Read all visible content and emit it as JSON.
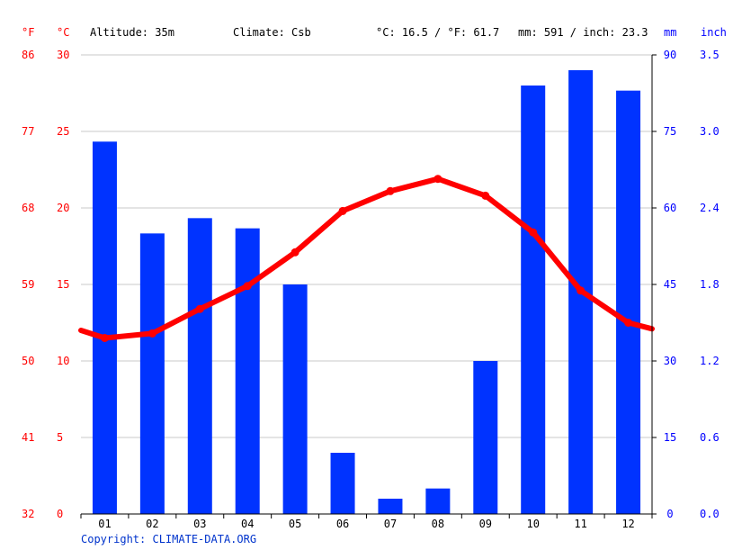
{
  "header": {
    "unit_f": "°F",
    "unit_c": "°C",
    "altitude": "Altitude: 35m",
    "climate": "Climate: Csb",
    "temp_avg": "°C: 16.5 / °F: 61.7",
    "precip_total": "mm: 591 / inch: 23.3",
    "unit_mm": "mm",
    "unit_inch": "inch"
  },
  "copyright": "Copyright: CLIMATE-DATA.ORG",
  "colors": {
    "temperature": "#ff0000",
    "precipitation": "#0033ff",
    "grid": "#c8c8c8"
  },
  "chart_data": {
    "type": "bar",
    "categories": [
      "01",
      "02",
      "03",
      "04",
      "05",
      "06",
      "07",
      "08",
      "09",
      "10",
      "11",
      "12"
    ],
    "series": [
      {
        "kind": "bar",
        "axis": "right",
        "values": [
          73,
          55,
          58,
          56,
          45,
          12,
          3,
          5,
          30,
          84,
          87,
          83
        ]
      },
      {
        "kind": "line",
        "axis": "left",
        "values": [
          11.5,
          11.8,
          13.4,
          14.9,
          17.1,
          19.8,
          21.1,
          21.9,
          20.8,
          18.4,
          14.6,
          12.5
        ],
        "edge_values": [
          12.0,
          12.1
        ]
      }
    ],
    "ylim_celsius": [
      0,
      30
    ],
    "yticks_celsius": [
      "0",
      "5",
      "10",
      "15",
      "20",
      "25",
      "30"
    ],
    "yticks_fahrenheit": [
      "32",
      "41",
      "50",
      "59",
      "68",
      "77",
      "86"
    ],
    "ylim_mm": [
      0,
      90
    ],
    "yticks_mm": [
      "0",
      "15",
      "30",
      "45",
      "60",
      "75",
      "90"
    ],
    "yticks_inch": [
      "0.0",
      "0.6",
      "1.2",
      "1.8",
      "2.4",
      "3.0",
      "3.5"
    ],
    "grid": true
  }
}
